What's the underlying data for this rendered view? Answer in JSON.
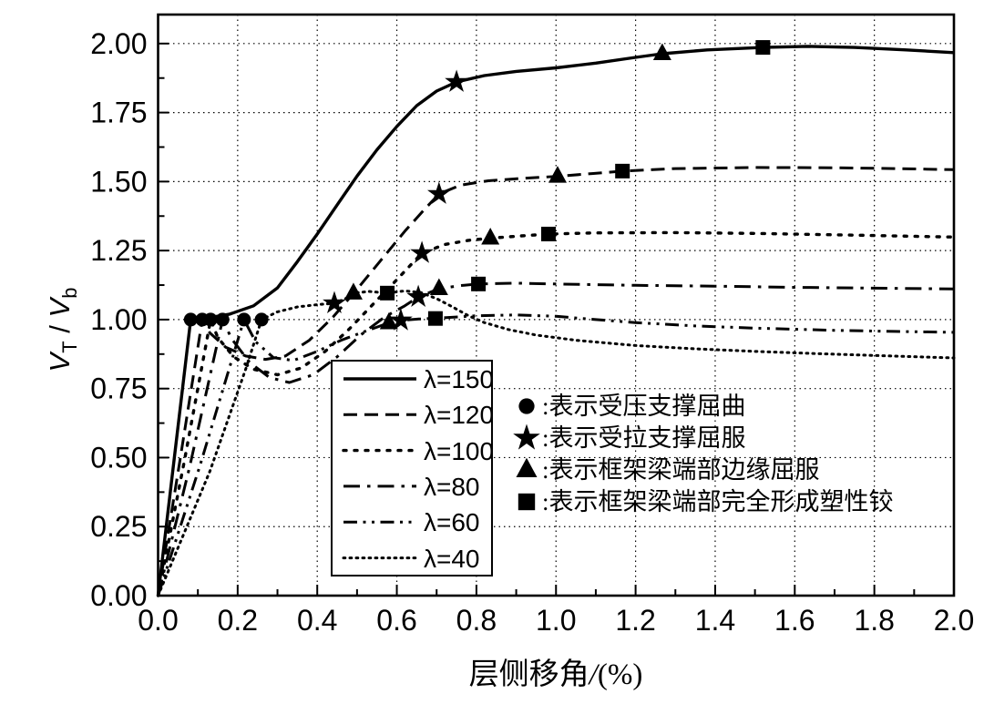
{
  "figure": {
    "background": "#ffffff",
    "ink": "#000000"
  },
  "chart_data": {
    "type": "line",
    "title": "",
    "x_axis": {
      "label_parts": {
        "name": "层侧移角",
        "slash": "/",
        "unit": "(%)"
      },
      "min": 0,
      "max": 2.0,
      "major_step": 0.2,
      "minor_step": 0.1,
      "tick_labels": [
        "0.0",
        "0.2",
        "0.4",
        "0.6",
        "0.8",
        "1.0",
        "1.2",
        "1.4",
        "1.6",
        "1.8",
        "2.0"
      ]
    },
    "y_axis": {
      "label_parts": {
        "v1": "V",
        "sub1": "T",
        "sep": " / ",
        "v2": "V",
        "sub2": "b"
      },
      "min": 0,
      "tick_max": 2.0,
      "display_max": 2.105,
      "major_step": 0.25,
      "minor_step": 0.125,
      "tick_labels": [
        "0.00",
        "0.25",
        "0.50",
        "0.75",
        "1.00",
        "1.25",
        "1.50",
        "1.75",
        "2.00"
      ]
    },
    "grid": {
      "style": "dotted",
      "on": true,
      "color": "#000000"
    },
    "legend_position": "inside-lower-middle",
    "series": [
      {
        "id": "lambda-150",
        "label": "λ=150",
        "linestyle": "solid",
        "dash": "",
        "width": 3.4,
        "cap": "butt",
        "points": [
          [
            0,
            0
          ],
          [
            0.04,
            0.49
          ],
          [
            0.082,
            1.0
          ],
          [
            0.12,
            1.005
          ],
          [
            0.18,
            1.02
          ],
          [
            0.24,
            1.05
          ],
          [
            0.3,
            1.115
          ],
          [
            0.35,
            1.21
          ],
          [
            0.4,
            1.31
          ],
          [
            0.45,
            1.415
          ],
          [
            0.5,
            1.52
          ],
          [
            0.55,
            1.615
          ],
          [
            0.6,
            1.7
          ],
          [
            0.65,
            1.775
          ],
          [
            0.7,
            1.828
          ],
          [
            0.75,
            1.861
          ],
          [
            0.82,
            1.884
          ],
          [
            0.9,
            1.899
          ],
          [
            1.0,
            1.912
          ],
          [
            1.1,
            1.929
          ],
          [
            1.2,
            1.95
          ],
          [
            1.267,
            1.963
          ],
          [
            1.38,
            1.977
          ],
          [
            1.52,
            1.986
          ],
          [
            1.63,
            1.99
          ],
          [
            1.75,
            1.986
          ],
          [
            1.88,
            1.977
          ],
          [
            2.0,
            1.967
          ]
        ],
        "markers": [
          {
            "type": "circle",
            "x": 0.082,
            "y": 1.0
          },
          {
            "type": "star",
            "x": 0.75,
            "y": 1.861
          },
          {
            "type": "triangle",
            "x": 1.267,
            "y": 1.963
          },
          {
            "type": "square",
            "x": 1.52,
            "y": 1.986
          }
        ]
      },
      {
        "id": "lambda-120",
        "label": "λ=120",
        "linestyle": "dashed",
        "dash": "15 8",
        "width": 3,
        "cap": "butt",
        "points": [
          [
            0,
            0
          ],
          [
            0.055,
            0.49
          ],
          [
            0.111,
            1.0
          ],
          [
            0.13,
            0.952
          ],
          [
            0.17,
            0.9
          ],
          [
            0.22,
            0.868
          ],
          [
            0.27,
            0.856
          ],
          [
            0.32,
            0.868
          ],
          [
            0.38,
            0.925
          ],
          [
            0.44,
            1.01
          ],
          [
            0.5,
            1.11
          ],
          [
            0.56,
            1.215
          ],
          [
            0.62,
            1.32
          ],
          [
            0.67,
            1.4
          ],
          [
            0.706,
            1.455
          ],
          [
            0.76,
            1.487
          ],
          [
            0.83,
            1.503
          ],
          [
            0.91,
            1.511
          ],
          [
            1.004,
            1.519
          ],
          [
            1.09,
            1.529
          ],
          [
            1.167,
            1.538
          ],
          [
            1.3,
            1.547
          ],
          [
            1.5,
            1.551
          ],
          [
            1.7,
            1.55
          ],
          [
            1.85,
            1.547
          ],
          [
            2.0,
            1.543
          ]
        ],
        "markers": [
          {
            "type": "circle",
            "x": 0.111,
            "y": 1.0
          },
          {
            "type": "star",
            "x": 0.706,
            "y": 1.455
          },
          {
            "type": "triangle",
            "x": 1.004,
            "y": 1.519
          },
          {
            "type": "square",
            "x": 1.167,
            "y": 1.538
          }
        ]
      },
      {
        "id": "lambda-100",
        "label": "λ=100",
        "linestyle": "dotted",
        "dash": "3 9",
        "width": 3.4,
        "cap": "round",
        "points": [
          [
            0,
            0
          ],
          [
            0.065,
            0.48
          ],
          [
            0.132,
            1.0
          ],
          [
            0.15,
            0.935
          ],
          [
            0.19,
            0.865
          ],
          [
            0.24,
            0.82
          ],
          [
            0.3,
            0.8
          ],
          [
            0.36,
            0.825
          ],
          [
            0.42,
            0.885
          ],
          [
            0.48,
            0.965
          ],
          [
            0.54,
            1.055
          ],
          [
            0.6,
            1.145
          ],
          [
            0.663,
            1.241
          ],
          [
            0.72,
            1.272
          ],
          [
            0.78,
            1.287
          ],
          [
            0.835,
            1.295
          ],
          [
            0.91,
            1.303
          ],
          [
            0.981,
            1.31
          ],
          [
            1.1,
            1.314
          ],
          [
            1.3,
            1.315
          ],
          [
            1.5,
            1.312
          ],
          [
            1.75,
            1.306
          ],
          [
            2.0,
            1.299
          ]
        ],
        "markers": [
          {
            "type": "circle",
            "x": 0.132,
            "y": 1.0
          },
          {
            "type": "star",
            "x": 0.663,
            "y": 1.241
          },
          {
            "type": "triangle",
            "x": 0.835,
            "y": 1.295
          },
          {
            "type": "square",
            "x": 0.981,
            "y": 1.31
          }
        ]
      },
      {
        "id": "lambda-80",
        "label": "λ=80",
        "linestyle": "dash-dot",
        "dash": "18 8 3.5 8",
        "width": 3,
        "cap": "butt",
        "points": [
          [
            0,
            0
          ],
          [
            0.08,
            0.47
          ],
          [
            0.162,
            1.0
          ],
          [
            0.185,
            0.93
          ],
          [
            0.23,
            0.845
          ],
          [
            0.28,
            0.79
          ],
          [
            0.33,
            0.772
          ],
          [
            0.39,
            0.8
          ],
          [
            0.45,
            0.865
          ],
          [
            0.51,
            0.945
          ],
          [
            0.57,
            1.01
          ],
          [
            0.62,
            1.05
          ],
          [
            0.654,
            1.082
          ],
          [
            0.706,
            1.112
          ],
          [
            0.76,
            1.123
          ],
          [
            0.805,
            1.129
          ],
          [
            0.9,
            1.132
          ],
          [
            1.0,
            1.129
          ],
          [
            1.2,
            1.124
          ],
          [
            1.4,
            1.121
          ],
          [
            1.6,
            1.117
          ],
          [
            1.8,
            1.114
          ],
          [
            2.0,
            1.111
          ]
        ],
        "markers": [
          {
            "type": "circle",
            "x": 0.162,
            "y": 1.0
          },
          {
            "type": "star",
            "x": 0.654,
            "y": 1.082
          },
          {
            "type": "triangle",
            "x": 0.706,
            "y": 1.112
          },
          {
            "type": "square",
            "x": 0.805,
            "y": 1.129
          }
        ]
      },
      {
        "id": "lambda-60",
        "label": "λ=60",
        "linestyle": "dash-dot-dot",
        "dash": "15 6.5 3 6.5 3 6.5",
        "width": 3,
        "cap": "butt",
        "points": [
          [
            0,
            0
          ],
          [
            0.105,
            0.47
          ],
          [
            0.216,
            1.0
          ],
          [
            0.245,
            0.92
          ],
          [
            0.29,
            0.862
          ],
          [
            0.34,
            0.852
          ],
          [
            0.4,
            0.885
          ],
          [
            0.46,
            0.925
          ],
          [
            0.52,
            0.957
          ],
          [
            0.58,
            0.988
          ],
          [
            0.61,
            0.997
          ],
          [
            0.655,
            1.002
          ],
          [
            0.7,
            1.005
          ],
          [
            0.8,
            1.014
          ],
          [
            0.9,
            1.017
          ],
          [
            1.0,
            1.012
          ],
          [
            1.1,
            1.0
          ],
          [
            1.2,
            0.989
          ],
          [
            1.35,
            0.977
          ],
          [
            1.5,
            0.969
          ],
          [
            1.7,
            0.961
          ],
          [
            1.85,
            0.957
          ],
          [
            2.0,
            0.954
          ]
        ],
        "markers": [
          {
            "type": "circle",
            "x": 0.216,
            "y": 1.0
          },
          {
            "type": "triangle",
            "x": 0.58,
            "y": 0.988
          },
          {
            "type": "star",
            "x": 0.61,
            "y": 0.997
          },
          {
            "type": "square",
            "x": 0.697,
            "y": 1.004
          }
        ]
      },
      {
        "id": "lambda-40",
        "label": "λ=40",
        "linestyle": "dense-dotted",
        "dash": "1.8 5.2",
        "width": 3,
        "cap": "round",
        "points": [
          [
            0,
            0
          ],
          [
            0.13,
            0.45
          ],
          [
            0.22,
            0.82
          ],
          [
            0.26,
            1.0
          ],
          [
            0.3,
            1.028
          ],
          [
            0.35,
            1.046
          ],
          [
            0.4,
            1.054
          ],
          [
            0.443,
            1.059
          ],
          [
            0.47,
            1.075
          ],
          [
            0.491,
            1.096
          ],
          [
            0.53,
            1.102
          ],
          [
            0.576,
            1.096
          ],
          [
            0.62,
            1.104
          ],
          [
            0.66,
            1.098
          ],
          [
            0.7,
            1.076
          ],
          [
            0.74,
            1.046
          ],
          [
            0.78,
            1.014
          ],
          [
            0.82,
            0.989
          ],
          [
            0.88,
            0.964
          ],
          [
            0.95,
            0.944
          ],
          [
            1.05,
            0.925
          ],
          [
            1.2,
            0.906
          ],
          [
            1.35,
            0.894
          ],
          [
            1.5,
            0.885
          ],
          [
            1.65,
            0.877
          ],
          [
            1.8,
            0.87
          ],
          [
            2.0,
            0.861
          ]
        ],
        "markers": [
          {
            "type": "circle",
            "x": 0.26,
            "y": 1.0
          },
          {
            "type": "star",
            "x": 0.443,
            "y": 1.059
          },
          {
            "type": "triangle",
            "x": 0.491,
            "y": 1.096
          },
          {
            "type": "square",
            "x": 0.576,
            "y": 1.096
          }
        ]
      }
    ],
    "marker_legend": [
      {
        "marker": "circle",
        "label": ":表示受压支撑屈曲"
      },
      {
        "marker": "star",
        "label": ":表示受拉支撑屈服"
      },
      {
        "marker": "triangle",
        "label": ":表示框架梁端部边缘屈服"
      },
      {
        "marker": "square",
        "label": ":表示框架梁端部完全形成塑性铰"
      }
    ]
  }
}
